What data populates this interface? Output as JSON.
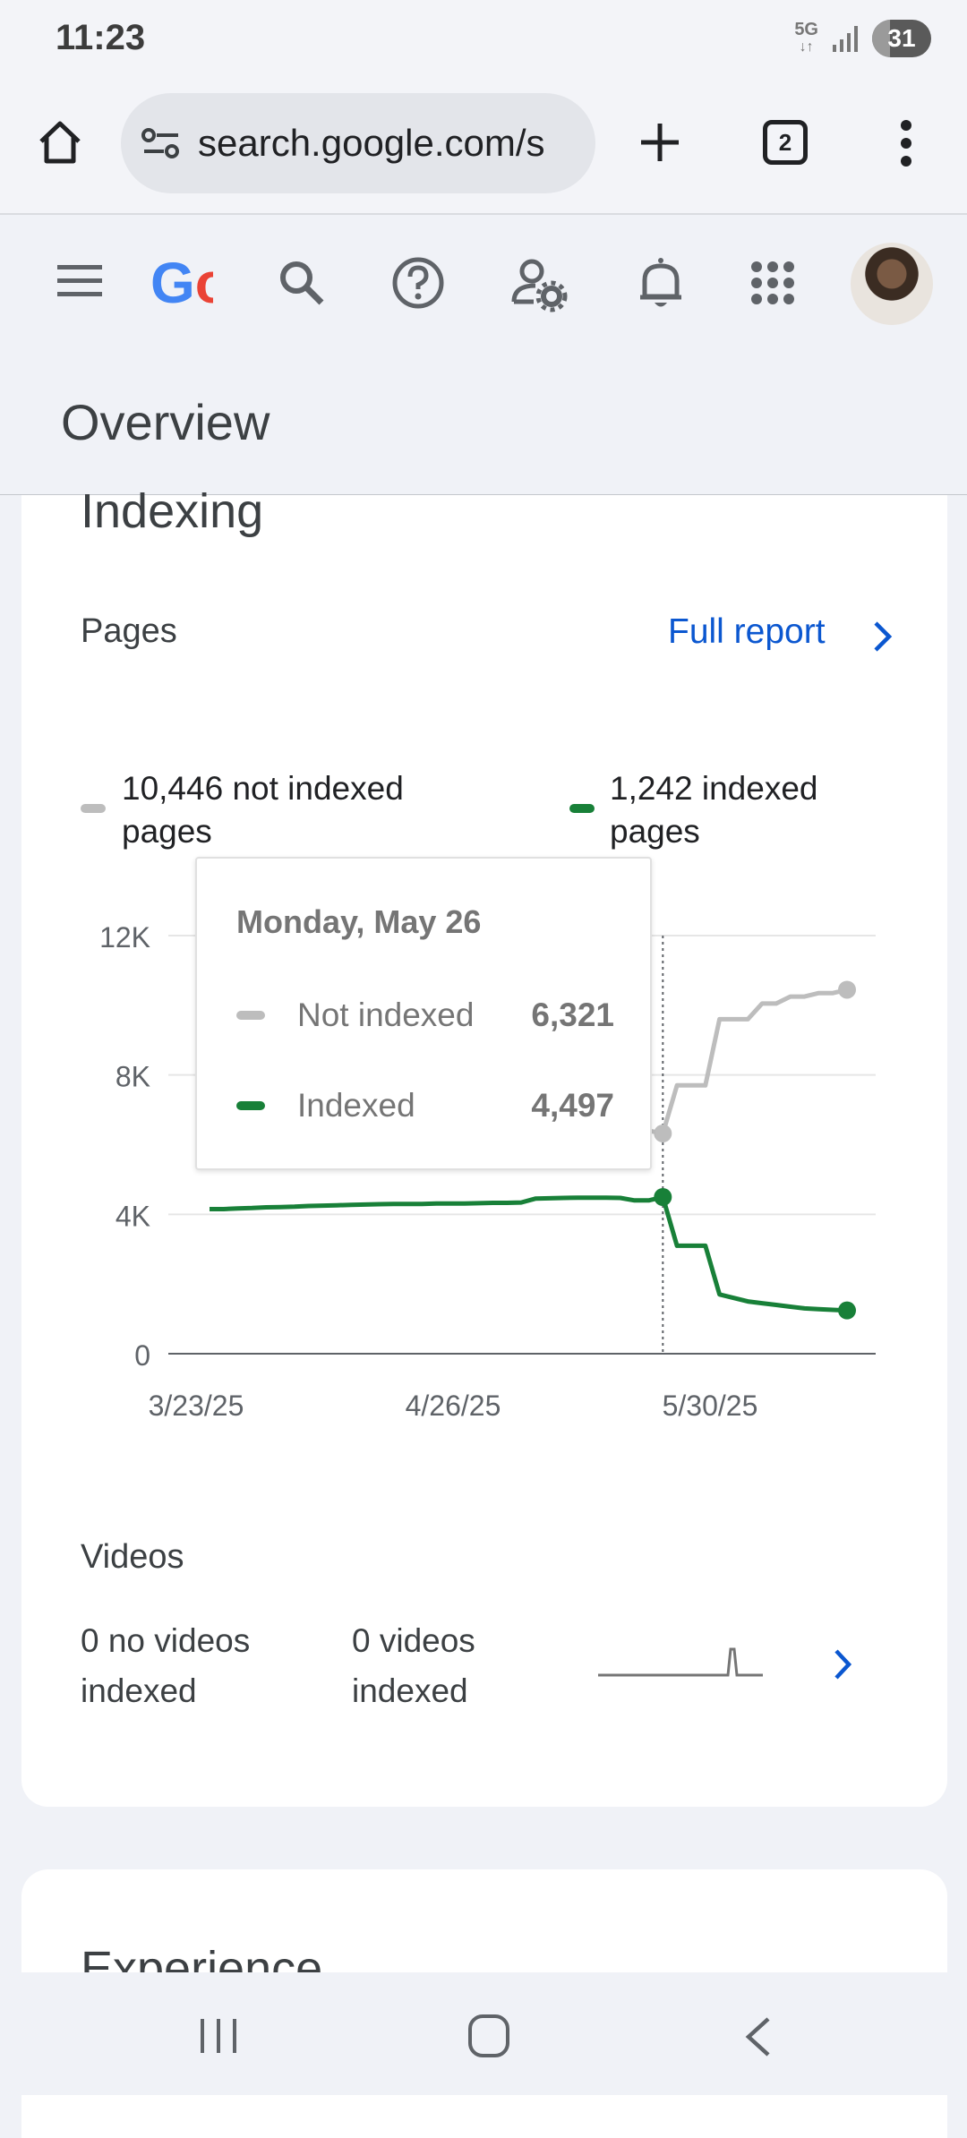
{
  "status_bar": {
    "time": "11:23",
    "network": "5G",
    "battery": "31"
  },
  "browser": {
    "url": "search.google.com/s",
    "tab_count": "2"
  },
  "header": {
    "title": "Overview",
    "logo_text": "Go"
  },
  "indexing": {
    "heading": "Indexing",
    "section_label": "Pages",
    "full_report": "Full report",
    "legend": {
      "not_indexed_line1": "10,446 not indexed",
      "not_indexed_line2": "pages",
      "indexed_line1": "1,242 indexed",
      "indexed_line2": "pages"
    },
    "tooltip": {
      "date": "Monday, May 26",
      "not_indexed_label": "Not indexed",
      "not_indexed_value": "6,321",
      "indexed_label": "Indexed",
      "indexed_value": "4,497"
    }
  },
  "videos": {
    "label": "Videos",
    "no_videos_line1": "0 no videos",
    "no_videos_line2": "indexed",
    "videos_line1": "0 videos",
    "videos_line2": "indexed"
  },
  "next_section": {
    "heading": "Experience"
  },
  "colors": {
    "not_indexed": "#bdbdbd",
    "indexed": "#188038",
    "link": "#0b57d0"
  },
  "chart_data": {
    "type": "line",
    "x_tick_labels": [
      "3/23/25",
      "4/26/25",
      "5/30/25"
    ],
    "y_tick_labels": [
      "0",
      "4K",
      "8K",
      "12K"
    ],
    "ylim": [
      0,
      12000
    ],
    "x": [
      "3/23/25",
      "3/25/25",
      "3/27/25",
      "3/29/25",
      "3/31/25",
      "4/2/25",
      "4/4/25",
      "4/6/25",
      "4/8/25",
      "4/10/25",
      "4/12/25",
      "4/14/25",
      "4/16/25",
      "4/18/25",
      "4/20/25",
      "4/22/25",
      "4/24/25",
      "4/26/25",
      "4/28/25",
      "4/30/25",
      "5/2/25",
      "5/4/25",
      "5/6/25",
      "5/8/25",
      "5/10/25",
      "5/12/25",
      "5/14/25",
      "5/16/25",
      "5/18/25",
      "5/20/25",
      "5/22/25",
      "5/24/25",
      "5/26/25",
      "5/28/25",
      "5/30/25",
      "6/1/25",
      "6/3/25",
      "6/5/25",
      "6/7/25",
      "6/9/25",
      "6/11/25",
      "6/13/25",
      "6/15/25",
      "6/17/25",
      "6/19/25",
      "6/21/25"
    ],
    "series": [
      {
        "name": "Not indexed",
        "values": [
          6150,
          6150,
          6150,
          6200,
          6200,
          6250,
          6250,
          6250,
          6280,
          6280,
          6300,
          6300,
          6300,
          6300,
          6300,
          6300,
          6300,
          6300,
          6320,
          6320,
          6340,
          6340,
          6340,
          6360,
          6360,
          6400,
          6400,
          6400,
          6420,
          6420,
          6420,
          6400,
          6321,
          7700,
          7700,
          7700,
          9600,
          9600,
          9600,
          10050,
          10050,
          10250,
          10250,
          10350,
          10350,
          10446
        ]
      },
      {
        "name": "Indexed",
        "values": [
          4150,
          4150,
          4170,
          4180,
          4200,
          4210,
          4220,
          4240,
          4250,
          4260,
          4270,
          4280,
          4290,
          4300,
          4300,
          4300,
          4310,
          4310,
          4310,
          4320,
          4330,
          4330,
          4340,
          4450,
          4460,
          4470,
          4480,
          4480,
          4480,
          4470,
          4400,
          4400,
          4497,
          3100,
          3100,
          3100,
          1700,
          1600,
          1500,
          1450,
          1400,
          1350,
          1300,
          1280,
          1260,
          1242
        ]
      }
    ],
    "highlight": {
      "x": "5/26/25",
      "not_indexed": 6321,
      "indexed": 4497
    }
  }
}
